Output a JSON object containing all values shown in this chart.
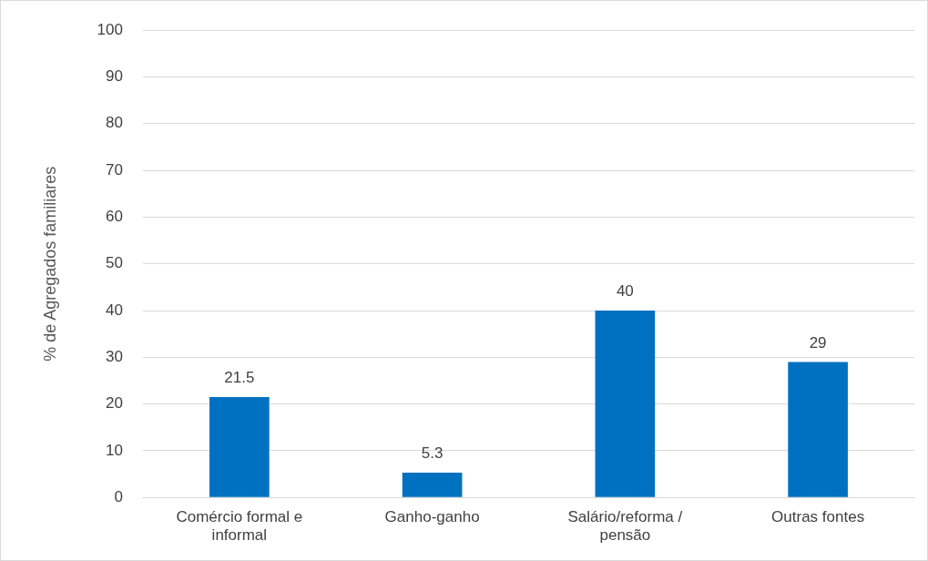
{
  "chart_data": {
    "type": "bar",
    "ylabel": "% de Agregados familiares",
    "categories": [
      "Comércio formal e informal",
      "Ganho-ganho",
      "Salário/reforma / pensão",
      "Outras fontes"
    ],
    "values": [
      21.5,
      5.3,
      40,
      29
    ],
    "color": "#0070c0",
    "ylim": [
      0,
      100
    ],
    "yticks": [
      0,
      10,
      20,
      30,
      40,
      50,
      60,
      70,
      80,
      90,
      100
    ],
    "grid": "y",
    "data_labels": true,
    "legend": false
  }
}
